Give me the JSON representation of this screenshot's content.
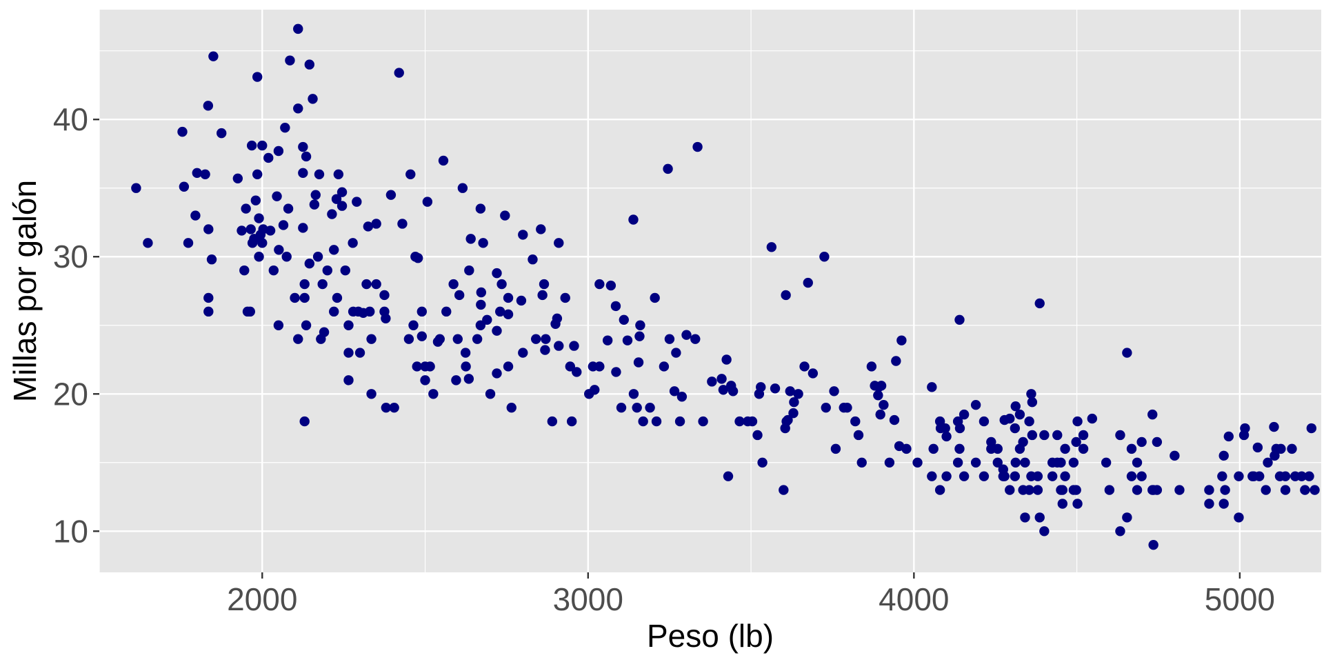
{
  "chart_data": {
    "type": "scatter",
    "xlabel": "Peso (lb)",
    "ylabel": "Millas por galón",
    "xlim": [
      1500,
      5250
    ],
    "ylim": [
      7,
      48
    ],
    "x_ticks": [
      2000,
      3000,
      4000,
      5000
    ],
    "y_ticks": [
      10,
      20,
      30,
      40
    ],
    "grid": true,
    "point_color": "#000080",
    "panel_background": "#e5e5e5",
    "grid_color": "#ffffff",
    "points": [
      [
        1613,
        35
      ],
      [
        1649,
        31
      ],
      [
        1755,
        39.1
      ],
      [
        1760,
        35.1
      ],
      [
        1773,
        31
      ],
      [
        1795,
        33
      ],
      [
        1800,
        36.1
      ],
      [
        1825,
        36
      ],
      [
        1834,
        41
      ],
      [
        1835,
        32
      ],
      [
        1835,
        27
      ],
      [
        1835,
        26
      ],
      [
        1845,
        29.8
      ],
      [
        1850,
        44.6
      ],
      [
        1875,
        39
      ],
      [
        1925,
        35.7
      ],
      [
        1937,
        31.9
      ],
      [
        1945,
        29
      ],
      [
        1950,
        33.5
      ],
      [
        1955,
        26
      ],
      [
        1963,
        26
      ],
      [
        1965,
        32
      ],
      [
        1968,
        38.1
      ],
      [
        1970,
        31
      ],
      [
        1975,
        31.3
      ],
      [
        1980,
        34.1
      ],
      [
        1985,
        43.1
      ],
      [
        1985,
        36
      ],
      [
        1990,
        30
      ],
      [
        1990,
        32.8
      ],
      [
        1995,
        31.6
      ],
      [
        2000,
        38.1
      ],
      [
        2000,
        31
      ],
      [
        2003,
        32
      ],
      [
        2019,
        37.2
      ],
      [
        2025,
        31.9
      ],
      [
        2035,
        29
      ],
      [
        2045,
        34.4
      ],
      [
        2050,
        37.7
      ],
      [
        2050,
        25
      ],
      [
        2051,
        30.5
      ],
      [
        2065,
        32.3
      ],
      [
        2070,
        39.4
      ],
      [
        2075,
        30
      ],
      [
        2080,
        33.5
      ],
      [
        2085,
        44.3
      ],
      [
        2100,
        27
      ],
      [
        2110,
        24
      ],
      [
        2110,
        46.6
      ],
      [
        2110,
        40.8
      ],
      [
        2125,
        32.1
      ],
      [
        2125,
        38
      ],
      [
        2125,
        36.1
      ],
      [
        2130,
        27
      ],
      [
        2130,
        28
      ],
      [
        2130,
        18
      ],
      [
        2135,
        37.3
      ],
      [
        2135,
        25
      ],
      [
        2145,
        44
      ],
      [
        2145,
        29.5
      ],
      [
        2155,
        41.5
      ],
      [
        2160,
        33.8
      ],
      [
        2164,
        34.5
      ],
      [
        2171,
        30
      ],
      [
        2175,
        36
      ],
      [
        2180,
        24
      ],
      [
        2185,
        28
      ],
      [
        2190,
        24.5
      ],
      [
        2200,
        29
      ],
      [
        2214,
        33.1
      ],
      [
        2220,
        30.5
      ],
      [
        2220,
        26
      ],
      [
        2228,
        34.2
      ],
      [
        2230,
        27
      ],
      [
        2234,
        36
      ],
      [
        2245,
        33.7
      ],
      [
        2245,
        34.7
      ],
      [
        2255,
        29
      ],
      [
        2265,
        25
      ],
      [
        2265,
        23
      ],
      [
        2265,
        21
      ],
      [
        2278,
        31
      ],
      [
        2279,
        26
      ],
      [
        2290,
        34
      ],
      [
        2295,
        26
      ],
      [
        2300,
        23
      ],
      [
        2310,
        25.9
      ],
      [
        2320,
        28
      ],
      [
        2325,
        32.2
      ],
      [
        2330,
        26
      ],
      [
        2335,
        20
      ],
      [
        2335,
        24
      ],
      [
        2350,
        32.4
      ],
      [
        2350,
        28
      ],
      [
        2375,
        27.2
      ],
      [
        2375,
        26
      ],
      [
        2379,
        25.5
      ],
      [
        2380,
        19
      ],
      [
        2395,
        34.5
      ],
      [
        2405,
        19
      ],
      [
        2420,
        43.4
      ],
      [
        2430,
        32.4
      ],
      [
        2450,
        24
      ],
      [
        2455,
        36
      ],
      [
        2464,
        25
      ],
      [
        2470,
        30
      ],
      [
        2475,
        22
      ],
      [
        2478,
        29.9
      ],
      [
        2490,
        26
      ],
      [
        2490,
        24.2
      ],
      [
        2500,
        22
      ],
      [
        2500,
        21
      ],
      [
        2507,
        34
      ],
      [
        2515,
        22
      ],
      [
        2525,
        20
      ],
      [
        2539,
        23.8
      ],
      [
        2545,
        24
      ],
      [
        2556,
        37
      ],
      [
        2565,
        26
      ],
      [
        2587,
        28
      ],
      [
        2595,
        21
      ],
      [
        2600,
        24
      ],
      [
        2605,
        27.2
      ],
      [
        2615,
        35
      ],
      [
        2624,
        23
      ],
      [
        2625,
        22
      ],
      [
        2634,
        21.1
      ],
      [
        2635,
        29
      ],
      [
        2640,
        31.3
      ],
      [
        2660,
        24
      ],
      [
        2670,
        25
      ],
      [
        2670,
        33.5
      ],
      [
        2671,
        26.5
      ],
      [
        2672,
        27.4
      ],
      [
        2678,
        31
      ],
      [
        2690,
        25.4
      ],
      [
        2700,
        20
      ],
      [
        2720,
        24.6
      ],
      [
        2720,
        21.5
      ],
      [
        2720,
        28.8
      ],
      [
        2730,
        26
      ],
      [
        2735,
        28
      ],
      [
        2745,
        33
      ],
      [
        2755,
        22
      ],
      [
        2755,
        25.8
      ],
      [
        2755,
        27
      ],
      [
        2765,
        19
      ],
      [
        2795,
        26.8
      ],
      [
        2800,
        31.6
      ],
      [
        2800,
        23
      ],
      [
        2830,
        29.8
      ],
      [
        2840,
        24
      ],
      [
        2855,
        32
      ],
      [
        2860,
        27.2
      ],
      [
        2865,
        28
      ],
      [
        2868,
        23.2
      ],
      [
        2870,
        24
      ],
      [
        2890,
        18
      ],
      [
        2900,
        25.1
      ],
      [
        2905,
        25.5
      ],
      [
        2910,
        31
      ],
      [
        2910,
        23.5
      ],
      [
        2930,
        27
      ],
      [
        2945,
        22
      ],
      [
        2950,
        18
      ],
      [
        2957,
        23.5
      ],
      [
        2965,
        21.6
      ],
      [
        3003,
        20
      ],
      [
        3015,
        22
      ],
      [
        3020,
        20.3
      ],
      [
        3035,
        28
      ],
      [
        3035,
        22
      ],
      [
        3060,
        23.9
      ],
      [
        3070,
        27.9
      ],
      [
        3085,
        26.4
      ],
      [
        3086,
        21.6
      ],
      [
        3102,
        19
      ],
      [
        3110,
        25.4
      ],
      [
        3121,
        23.9
      ],
      [
        3139,
        32.7
      ],
      [
        3140,
        20
      ],
      [
        3150,
        19
      ],
      [
        3155,
        22.3
      ],
      [
        3158,
        24.2
      ],
      [
        3160,
        25
      ],
      [
        3169,
        18
      ],
      [
        3190,
        19
      ],
      [
        3205,
        27
      ],
      [
        3210,
        18
      ],
      [
        3233,
        22
      ],
      [
        3245,
        36.4
      ],
      [
        3250,
        24
      ],
      [
        3265,
        20.2
      ],
      [
        3270,
        23
      ],
      [
        3282,
        18
      ],
      [
        3288,
        19.8
      ],
      [
        3302,
        24.3
      ],
      [
        3329,
        24
      ],
      [
        3336,
        38
      ],
      [
        3353,
        18
      ],
      [
        3380,
        20.9
      ],
      [
        3410,
        21.1
      ],
      [
        3415,
        20.3
      ],
      [
        3425,
        22.5
      ],
      [
        3430,
        14
      ],
      [
        3439,
        20.6
      ],
      [
        3445,
        20.2
      ],
      [
        3465,
        18
      ],
      [
        3490,
        18
      ],
      [
        3504,
        18
      ],
      [
        3520,
        17
      ],
      [
        3525,
        20
      ],
      [
        3530,
        20.5
      ],
      [
        3535,
        15
      ],
      [
        3563,
        30.7
      ],
      [
        3574,
        20.4
      ],
      [
        3600,
        13
      ],
      [
        3605,
        17.5
      ],
      [
        3607,
        27.2
      ],
      [
        3609,
        18
      ],
      [
        3613,
        18.1
      ],
      [
        3620,
        20.2
      ],
      [
        3630,
        18.6
      ],
      [
        3632,
        19.4
      ],
      [
        3645,
        20
      ],
      [
        3664,
        22
      ],
      [
        3675,
        28.1
      ],
      [
        3690,
        21.5
      ],
      [
        3725,
        30
      ],
      [
        3730,
        19
      ],
      [
        3755,
        20.2
      ],
      [
        3760,
        16
      ],
      [
        3785,
        19
      ],
      [
        3795,
        19
      ],
      [
        3820,
        18
      ],
      [
        3830,
        17
      ],
      [
        3840,
        15
      ],
      [
        3870,
        22
      ],
      [
        3880,
        20.6
      ],
      [
        3890,
        19.9
      ],
      [
        3892,
        20.5
      ],
      [
        3897,
        18.5
      ],
      [
        3900,
        20.6
      ],
      [
        3907,
        19.2
      ],
      [
        3925,
        15
      ],
      [
        3940,
        18.1
      ],
      [
        3945,
        22.4
      ],
      [
        3955,
        16.2
      ],
      [
        3962,
        23.9
      ],
      [
        3977,
        16
      ],
      [
        4011,
        15
      ],
      [
        4055,
        20.5
      ],
      [
        4060,
        16
      ],
      [
        4080,
        18
      ],
      [
        4082,
        17.5
      ],
      [
        4096,
        17.5
      ],
      [
        4100,
        16.9
      ],
      [
        4135,
        18
      ],
      [
        4140,
        25.4
      ],
      [
        4141,
        17.5
      ],
      [
        4154,
        18.5
      ],
      [
        4190,
        19.2
      ],
      [
        4215,
        18
      ],
      [
        4237,
        16.5
      ],
      [
        4257,
        15
      ],
      [
        4274,
        14
      ],
      [
        4278,
        18.1
      ],
      [
        4294,
        18.2
      ],
      [
        4310,
        17.5
      ],
      [
        4312,
        19.1
      ],
      [
        4325,
        18.5
      ],
      [
        4335,
        16.5
      ],
      [
        4341,
        11
      ],
      [
        4354,
        18
      ],
      [
        4360,
        20
      ],
      [
        4363,
        19.4
      ],
      [
        4380,
        14
      ],
      [
        4386,
        26.6
      ],
      [
        4400,
        17
      ],
      [
        4425,
        15
      ],
      [
        4440,
        17
      ],
      [
        4451,
        15
      ],
      [
        4456,
        13
      ],
      [
        4464,
        16
      ],
      [
        4490,
        15
      ],
      [
        4498,
        16.5
      ],
      [
        4502,
        18
      ],
      [
        4520,
        17
      ],
      [
        4547,
        18.2
      ],
      [
        4590,
        15
      ],
      [
        4600,
        13
      ],
      [
        4633,
        17
      ],
      [
        4654,
        23
      ],
      [
        4668,
        16
      ],
      [
        4685,
        15
      ],
      [
        4699,
        16.5
      ],
      [
        4732,
        18.5
      ],
      [
        4735,
        13
      ],
      [
        4746,
        16.5
      ],
      [
        4800,
        15.5
      ],
      [
        4815,
        13
      ],
      [
        4906,
        13
      ],
      [
        4946,
        14
      ],
      [
        4951,
        15.5
      ],
      [
        4955,
        13
      ],
      [
        4966,
        16.9
      ],
      [
        4997,
        14
      ],
      [
        5013,
        17
      ],
      [
        5016,
        17.5
      ],
      [
        5039,
        14
      ],
      [
        5043,
        14
      ],
      [
        5055,
        16.1
      ],
      [
        5060,
        14
      ],
      [
        5080,
        13
      ],
      [
        5086,
        15
      ],
      [
        5105,
        17.6
      ],
      [
        5107,
        15.5
      ],
      [
        5112,
        16
      ],
      [
        5123,
        14
      ],
      [
        5126,
        16
      ],
      [
        5140,
        14
      ],
      [
        5160,
        16
      ],
      [
        5170,
        14
      ],
      [
        5190,
        14
      ],
      [
        5200,
        13
      ],
      [
        5213,
        14
      ],
      [
        5220,
        17.5
      ],
      [
        5230,
        13
      ],
      [
        4055,
        14
      ],
      [
        4080,
        13
      ],
      [
        4100,
        14
      ],
      [
        4135,
        15
      ],
      [
        4140,
        16
      ],
      [
        4154,
        14
      ],
      [
        4190,
        15
      ],
      [
        4215,
        14
      ],
      [
        4237,
        16
      ],
      [
        4257,
        16
      ],
      [
        4274,
        14.5
      ],
      [
        4278,
        14
      ],
      [
        4294,
        13
      ],
      [
        4310,
        14
      ],
      [
        4312,
        15
      ],
      [
        4325,
        16
      ],
      [
        4335,
        13
      ],
      [
        4341,
        15
      ],
      [
        4354,
        13
      ],
      [
        4360,
        14
      ],
      [
        4363,
        17
      ],
      [
        4380,
        13
      ],
      [
        4386,
        11
      ],
      [
        4400,
        10
      ],
      [
        4425,
        14
      ],
      [
        4440,
        15
      ],
      [
        4451,
        13
      ],
      [
        4456,
        12
      ],
      [
        4464,
        14
      ],
      [
        4490,
        13
      ],
      [
        4498,
        13
      ],
      [
        4502,
        12
      ],
      [
        4520,
        16
      ],
      [
        4633,
        10
      ],
      [
        4654,
        11
      ],
      [
        4668,
        14
      ],
      [
        4685,
        13
      ],
      [
        4699,
        14
      ],
      [
        4732,
        13
      ],
      [
        4735,
        9
      ],
      [
        4746,
        13
      ],
      [
        4906,
        12
      ],
      [
        4951,
        12
      ],
      [
        4997,
        11
      ],
      [
        5140,
        13
      ]
    ]
  }
}
